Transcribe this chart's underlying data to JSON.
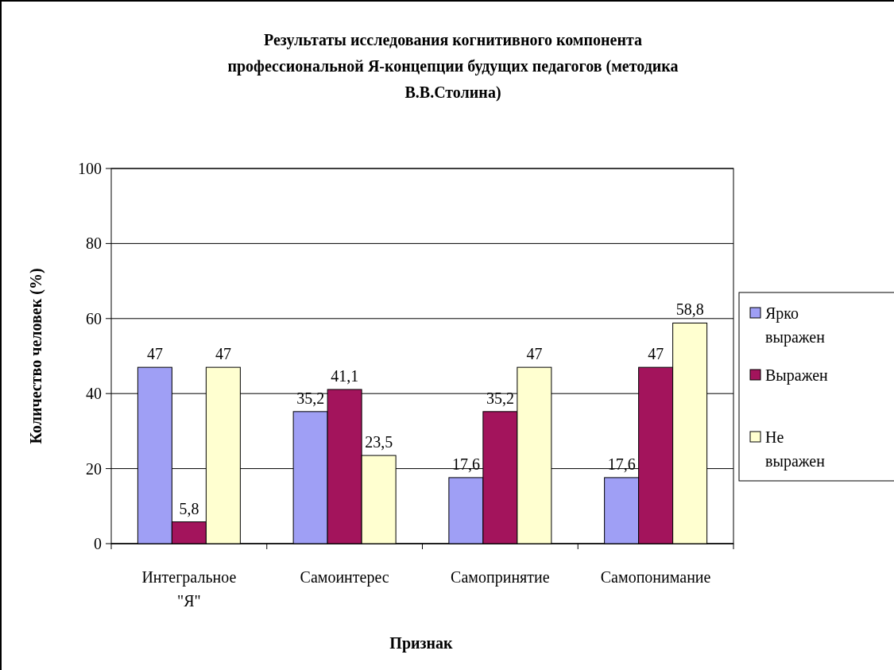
{
  "chart_data": {
    "type": "bar",
    "title": "Результаты исследования когнитивного компонента профессиональной Я-концепции будущих педагогов (методика В.В.Столина)",
    "xlabel": "Признак",
    "ylabel": "Количество человек (%)",
    "categories": [
      "Интегральное \"Я\"",
      "Самоинтерес",
      "Самопринятие",
      "Самопонимание"
    ],
    "series": [
      {
        "name": "Ярко выражен",
        "color": "#9f9ff5",
        "values": [
          47,
          35.2,
          17.6,
          17.6
        ],
        "value_labels": [
          "47",
          "35,2",
          "17,6",
          "17,6"
        ]
      },
      {
        "name": "Выражен",
        "color": "#a3145c",
        "values": [
          5.8,
          41.1,
          35.2,
          47
        ],
        "value_labels": [
          "5,8",
          "41,1",
          "35,2",
          "47"
        ]
      },
      {
        "name": "Не выражен",
        "color": "#ffffd0",
        "values": [
          47,
          23.5,
          47,
          58.8
        ],
        "value_labels": [
          "47",
          "23,5",
          "47",
          "58,8"
        ]
      }
    ],
    "ylim": [
      0,
      100
    ],
    "yticks": [
      0,
      20,
      40,
      60,
      80,
      100
    ],
    "grid": "y",
    "legend": "right"
  }
}
